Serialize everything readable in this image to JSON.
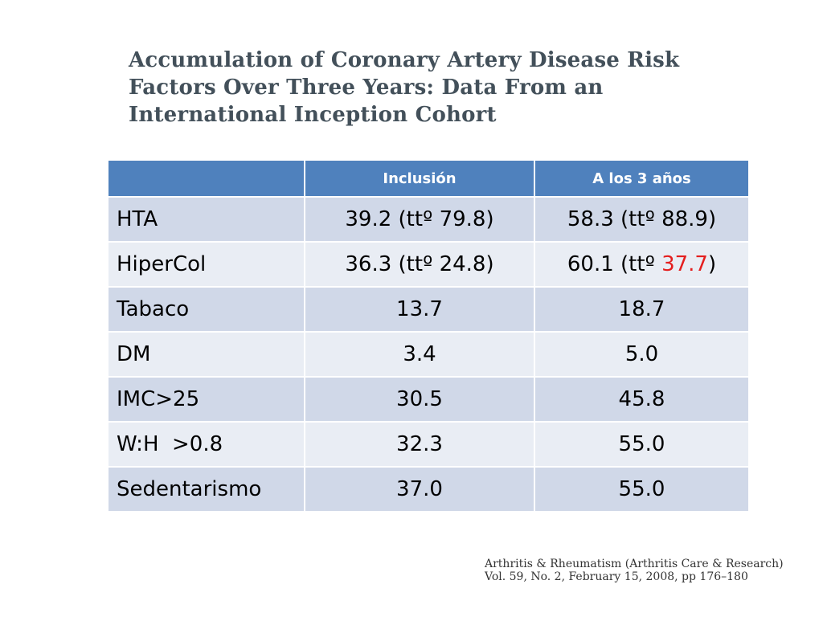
{
  "title_lines": [
    "Accumulation of Coronary Artery Disease Risk",
    "Factors Over Three Years: Data From an",
    "International Inception Cohort"
  ],
  "table": {
    "header": {
      "col1": "",
      "col2": "Inclusión",
      "col3": "A los 3 años"
    },
    "rows": [
      {
        "label": "HTA",
        "inclusion": "39.2 (ttº 79.8)",
        "three_years": "58.3 (ttº 88.9)"
      },
      {
        "label": "HiperCol",
        "inclusion": "36.3 (ttº 24.8)",
        "three_years_prefix": "60.1 (ttº ",
        "three_years_highlight": "37.7",
        "three_years_suffix": ")"
      },
      {
        "label": "Tabaco",
        "inclusion": "13.7",
        "three_years": "18.7"
      },
      {
        "label": "DM",
        "inclusion": "3.4",
        "three_years": "5.0"
      },
      {
        "label": "IMC>25",
        "inclusion": "30.5",
        "three_years": "45.8"
      },
      {
        "label": "W:H  >0.8",
        "inclusion": "32.3",
        "three_years": "55.0"
      },
      {
        "label": "Sedentarismo",
        "inclusion": "37.0",
        "three_years": "55.0"
      }
    ]
  },
  "citation": {
    "line1": "Arthritis & Rheumatism (Arthritis Care & Research)",
    "line2": "Vol. 59, No. 2, February 15, 2008, pp 176–180"
  },
  "colors": {
    "header_bg": "#4f81bd",
    "row_dark": "#d0d8e8",
    "row_light": "#e9edf4",
    "highlight": "#e41e1e"
  }
}
